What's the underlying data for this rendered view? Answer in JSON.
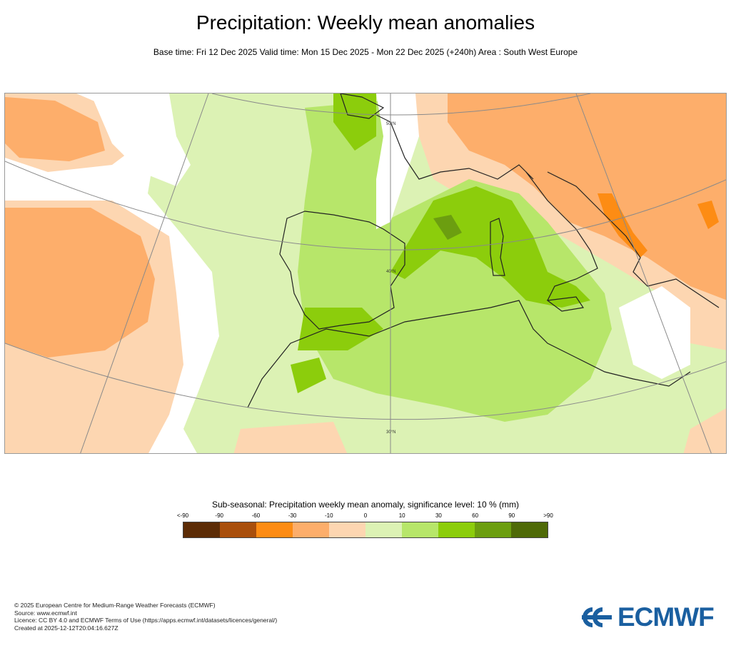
{
  "title": "Precipitation: Weekly mean anomalies",
  "subtitle": "Base time: Fri 12 Dec 2025 Valid time: Mon 15 Dec 2025 - Mon 22 Dec 2025 (+240h) Area : South West Europe",
  "map": {
    "lat_labels": [
      "50°N",
      "40°N",
      "30°N"
    ],
    "colors": {
      "ocean": "#ffffff",
      "pos1": "#dcf2b4",
      "pos2": "#b7e66a",
      "pos3": "#8ccd0c",
      "pos4": "#6c9e10",
      "neg1": "#fdd6b1",
      "neg2": "#fdae6b",
      "neg3": "#fd8c14",
      "coast": "#222222",
      "grid": "#8a8a8a"
    }
  },
  "legend": {
    "title": "Sub-seasonal: Precipitation weekly mean anomaly, significance level: 10 % (mm)",
    "ticks": [
      "<-90",
      "-90",
      "-60",
      "-30",
      "-10",
      "0",
      "10",
      "30",
      "60",
      "90",
      ">90"
    ],
    "colors": [
      "#5c2c06",
      "#a94f0c",
      "#fd8c14",
      "#fdae6b",
      "#fdd6b1",
      "#dcf2b4",
      "#b7e66a",
      "#8ccd0c",
      "#6c9e10",
      "#4f6a08"
    ]
  },
  "footer": {
    "copyright": "© 2025 European Centre for Medium-Range Weather Forecasts (ECMWF)",
    "source": "Source: www.ecmwf.int",
    "licence": "Licence: CC BY 4.0 and ECMWF Terms of Use (https://apps.ecmwf.int/datasets/licences/general/)",
    "created": "Created at 2025-12-12T20:04:16.627Z"
  },
  "logo": {
    "text": "ECMWF",
    "color": "#1a5fa0"
  }
}
